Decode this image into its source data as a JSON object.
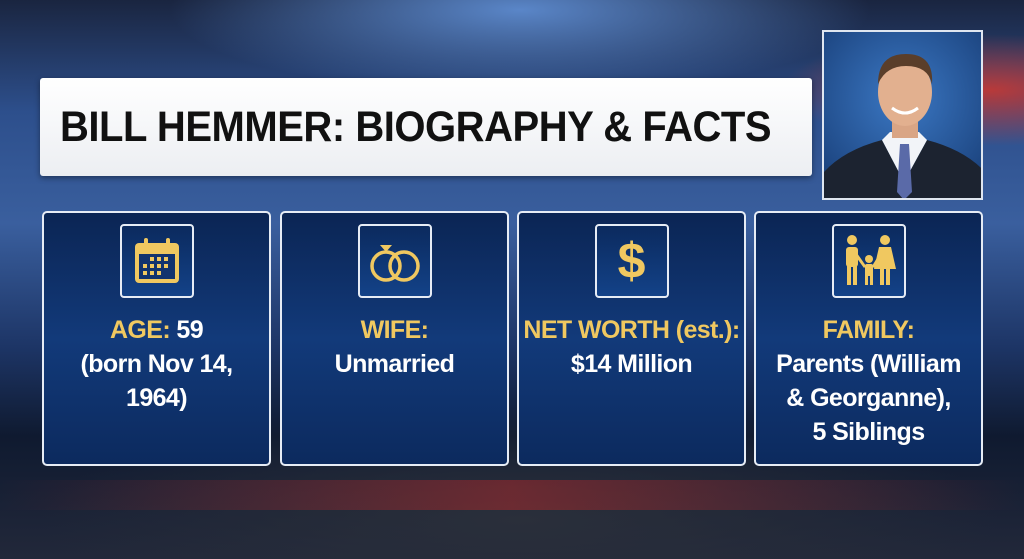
{
  "title": "BILL HEMMER: BIOGRAPHY & FACTS",
  "accent_color": "#f0c860",
  "card_color": "#123a7a",
  "cards": [
    {
      "icon": "calendar-icon",
      "label": "AGE:",
      "value_inline": " 59",
      "lines": [
        "(born Nov 14,",
        "1964)"
      ]
    },
    {
      "icon": "wedding-rings-icon",
      "label": "WIFE:",
      "value_inline": "",
      "lines": [
        "Unmarried"
      ]
    },
    {
      "icon": "dollar-icon",
      "label": "NET WORTH (est.):",
      "value_inline": "",
      "lines": [
        "$14 Million"
      ]
    },
    {
      "icon": "family-icon",
      "label": "FAMILY:",
      "value_inline": "",
      "lines": [
        "Parents (William",
        "& Georganne),",
        "5 Siblings"
      ]
    }
  ]
}
